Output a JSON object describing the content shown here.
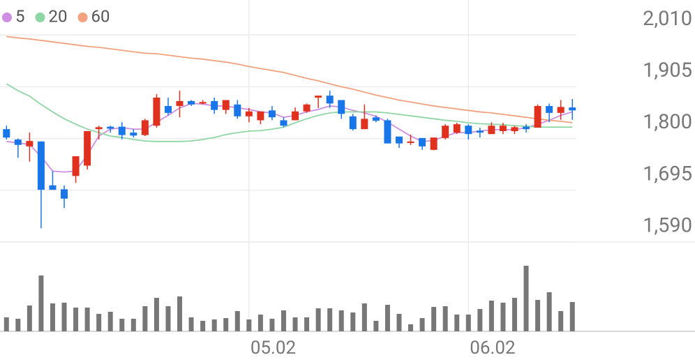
{
  "chart_data": {
    "type": "candlestick",
    "categories": [
      null,
      null,
      null,
      null,
      null,
      null,
      null,
      null,
      null,
      null,
      null,
      null,
      null,
      null,
      null,
      null,
      null,
      null,
      null,
      null,
      null,
      "05.02",
      null,
      null,
      null,
      null,
      null,
      null,
      null,
      null,
      null,
      null,
      null,
      null,
      null,
      null,
      null,
      null,
      null,
      null,
      "06.02",
      null,
      null,
      null,
      null,
      null,
      null,
      null,
      null,
      null
    ],
    "open": [
      1819,
      1798,
      1784,
      1794,
      1705,
      1697,
      1724,
      1745,
      1819,
      1824,
      1824,
      1812,
      1807,
      1826,
      1866,
      1866,
      1876,
      1871,
      1876,
      1858,
      1869,
      1845,
      1837,
      1857,
      1837,
      1837,
      1855,
      1883,
      1887,
      1878,
      1845,
      1819,
      1843,
      1837,
      1804,
      1791,
      1801,
      1777,
      1801,
      1812,
      1826,
      1816,
      1809,
      1815,
      1815,
      1824,
      1822,
      1866,
      1852,
      1863
    ],
    "high": [
      1826,
      1800,
      1812,
      1794,
      1734,
      1705,
      1764,
      1815,
      1826,
      1826,
      1833,
      1819,
      1840,
      1890,
      1883,
      1897,
      1878,
      1878,
      1883,
      1878,
      1878,
      1862,
      1855,
      1866,
      1843,
      1863,
      1871,
      1887,
      1897,
      1878,
      1850,
      1869,
      1847,
      1840,
      1804,
      1808,
      1801,
      1802,
      1829,
      1832,
      1829,
      1822,
      1833,
      1832,
      1826,
      1829,
      1869,
      1871,
      1878,
      1880
    ],
    "low": [
      1798,
      1761,
      1753,
      1618,
      1696,
      1659,
      1710,
      1737,
      1798,
      1812,
      1798,
      1802,
      1805,
      1822,
      1847,
      1843,
      1866,
      1869,
      1850,
      1850,
      1840,
      1833,
      1829,
      1837,
      1823,
      1837,
      1852,
      1862,
      1862,
      1840,
      1816,
      1819,
      1833,
      1790,
      1781,
      1787,
      1777,
      1776,
      1798,
      1809,
      1798,
      1802,
      1809,
      1809,
      1809,
      1812,
      1822,
      1833,
      1838,
      1838
    ],
    "close": [
      1802,
      1787,
      1795,
      1696,
      1696,
      1678,
      1764,
      1815,
      1823,
      1820,
      1807,
      1806,
      1837,
      1883,
      1852,
      1876,
      1869,
      1874,
      1858,
      1878,
      1845,
      1855,
      1855,
      1843,
      1826,
      1855,
      1869,
      1887,
      1871,
      1850,
      1819,
      1840,
      1836,
      1790,
      1790,
      1794,
      1784,
      1802,
      1826,
      1829,
      1809,
      1812,
      1826,
      1826,
      1823,
      1819,
      1866,
      1852,
      1864,
      1857
    ],
    "up_color": "#e0301e",
    "down_color": "#1976e8",
    "series": [
      {
        "name": "5",
        "color": "#d08ee2",
        "values": [
          1794,
          1791,
          1788,
          1763,
          1734,
          1732,
          1734,
          1767,
          1805,
          1819,
          1822,
          1819,
          1819,
          1833,
          1847,
          1862,
          1871,
          1870,
          1866,
          1866,
          1862,
          1859,
          1854,
          1852,
          1843,
          1847,
          1854,
          1859,
          1866,
          1864,
          1857,
          1852,
          1845,
          1833,
          1819,
          1805,
          1794,
          1796,
          1805,
          1812,
          1812,
          1815,
          1818,
          1818,
          1818,
          1822,
          1829,
          1837,
          1847,
          1854
        ]
      },
      {
        "name": "20",
        "color": "#8fd6a4",
        "values": [
          1911,
          1897,
          1886,
          1869,
          1854,
          1840,
          1829,
          1819,
          1812,
          1805,
          1802,
          1798,
          1795,
          1794,
          1794,
          1794,
          1795,
          1798,
          1802,
          1808,
          1812,
          1815,
          1816,
          1819,
          1823,
          1832,
          1840,
          1847,
          1852,
          1854,
          1854,
          1854,
          1854,
          1852,
          1849,
          1846,
          1843,
          1840,
          1837,
          1835,
          1832,
          1830,
          1829,
          1828,
          1826,
          1825,
          1823,
          1823,
          1823,
          1823
        ]
      },
      {
        "name": "60",
        "color": "#f2a27e",
        "values": [
          2007,
          2004,
          2002,
          1999,
          1996,
          1993,
          1990,
          1987,
          1985,
          1982,
          1979,
          1976,
          1973,
          1972,
          1969,
          1966,
          1963,
          1961,
          1958,
          1955,
          1951,
          1946,
          1942,
          1938,
          1934,
          1928,
          1922,
          1917,
          1911,
          1905,
          1900,
          1894,
          1888,
          1883,
          1878,
          1874,
          1870,
          1866,
          1863,
          1860,
          1857,
          1854,
          1852,
          1849,
          1846,
          1843,
          1840,
          1837,
          1835,
          1832
        ]
      }
    ],
    "ylim": [
      1590,
      2081
    ],
    "yticks": [
      {
        "value": 2010,
        "label": "2,010"
      },
      {
        "value": 1905,
        "label": "1,905"
      },
      {
        "value": 1800,
        "label": "1,800"
      },
      {
        "value": 1695,
        "label": "1,695"
      },
      {
        "value": 1590,
        "label": "1,590"
      }
    ],
    "grid": true,
    "volume": {
      "color": "#777777",
      "ylim": [
        0,
        120
      ],
      "values": [
        20,
        18,
        37,
        80,
        40,
        41,
        34,
        34,
        25,
        28,
        18,
        18,
        36,
        48,
        36,
        50,
        20,
        15,
        17,
        19,
        29,
        17,
        24,
        18,
        30,
        20,
        20,
        33,
        33,
        30,
        27,
        40,
        15,
        38,
        25,
        10,
        19,
        35,
        36,
        24,
        24,
        32,
        44,
        41,
        48,
        94,
        45,
        56,
        29,
        42
      ]
    }
  }
}
